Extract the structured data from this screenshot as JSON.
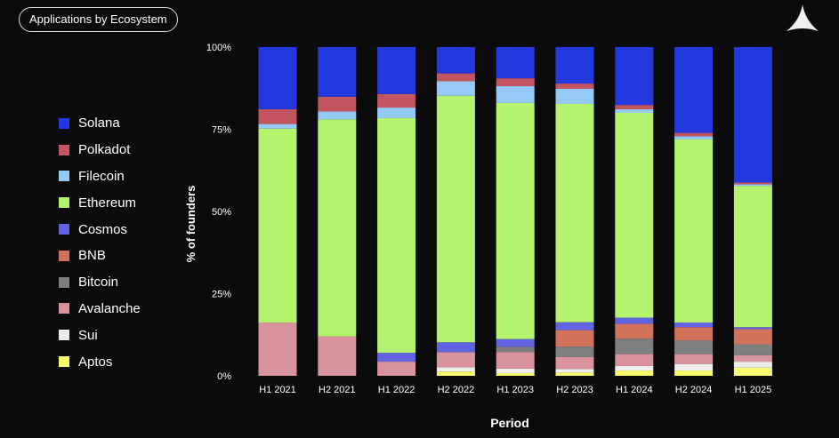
{
  "header": {
    "title": "Applications by Ecosystem",
    "logo": "triangle-logo-icon"
  },
  "chart_data": {
    "type": "bar",
    "stacked": true,
    "xlabel": "Period",
    "ylabel": "% of founders",
    "ylim": [
      0,
      100
    ],
    "yticks": [
      "0%",
      "25%",
      "50%",
      "75%",
      "100%"
    ],
    "legend_position": "left",
    "categories": [
      "H1 2021",
      "H2 2021",
      "H1 2022",
      "H2 2022",
      "H1 2023",
      "H2 2023",
      "H1 2024",
      "H2 2024",
      "H1 2025"
    ],
    "series": [
      {
        "name": "Aptos",
        "color": "#FAFA6E",
        "values": [
          0,
          0,
          0,
          1.3,
          0.8,
          1.0,
          1.6,
          1.6,
          2.5
        ]
      },
      {
        "name": "Sui",
        "color": "#EDEDED",
        "values": [
          0,
          0,
          0,
          1.3,
          1.4,
          1.1,
          1.4,
          2.0,
          1.8
        ]
      },
      {
        "name": "Avalanche",
        "color": "#D8939C",
        "values": [
          16.2,
          12,
          4.3,
          4.6,
          5.0,
          3.6,
          3.6,
          3.0,
          2.0
        ]
      },
      {
        "name": "Bitcoin",
        "color": "#7F7F7F",
        "values": [
          0,
          0,
          0,
          0,
          1.6,
          3.2,
          4.7,
          4.2,
          3.3
        ]
      },
      {
        "name": "BNB",
        "color": "#D2725A",
        "values": [
          0,
          0,
          0,
          0,
          0,
          5.0,
          4.5,
          4.0,
          4.6
        ]
      },
      {
        "name": "Cosmos",
        "color": "#6163E0",
        "values": [
          0,
          0,
          2.7,
          3.0,
          2.4,
          2.4,
          1.9,
          1.4,
          0.6
        ]
      },
      {
        "name": "Ethereum",
        "color": "#B5F26E",
        "values": [
          59,
          66,
          71.4,
          75,
          71.8,
          66.4,
          62.3,
          55.7,
          43
        ]
      },
      {
        "name": "Filecoin",
        "color": "#94CAF5",
        "values": [
          1.4,
          2.4,
          3.2,
          4.4,
          5.1,
          4.6,
          1.1,
          1.0,
          0.5
        ]
      },
      {
        "name": "Polkadot",
        "color": "#C25560",
        "values": [
          4.5,
          4.5,
          4.1,
          2.4,
          2.4,
          1.6,
          1.3,
          1.0,
          0.5
        ]
      },
      {
        "name": "Solana",
        "color": "#2338DF",
        "values": [
          18.9,
          15.1,
          14.3,
          8.0,
          9.5,
          11.1,
          17.6,
          26.1,
          41.2
        ]
      }
    ],
    "legend_order": [
      "Solana",
      "Polkadot",
      "Filecoin",
      "Ethereum",
      "Cosmos",
      "BNB",
      "Bitcoin",
      "Avalanche",
      "Sui",
      "Aptos"
    ]
  }
}
